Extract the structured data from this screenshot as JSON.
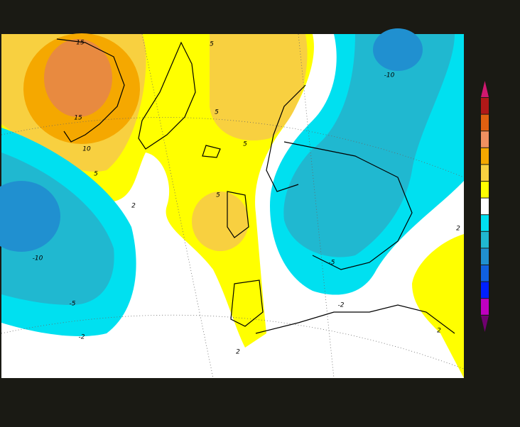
{
  "map": {
    "contour_labels": [
      "15",
      "15",
      "10",
      "5",
      "5",
      "5",
      "5",
      "5",
      "2",
      "2",
      "2",
      "2",
      "-10",
      "-5",
      "-2",
      "-10",
      "-5",
      "-2"
    ]
  }
}
